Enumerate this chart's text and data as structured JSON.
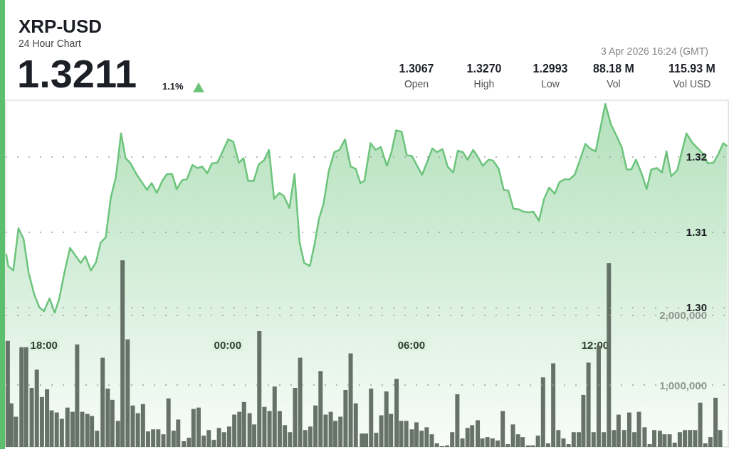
{
  "chart_data": {
    "type": "area",
    "title": "XRP-USD",
    "subtitle": "24 Hour Chart",
    "annotations": [
      "1.3211",
      "1.1%",
      "1.3067",
      "Open",
      "1.3270",
      "High",
      "1.2993",
      "Low",
      "88.18 M",
      "Vol",
      "115.93 M",
      "Vol USD",
      "3 Apr 2026 16:24 (GMT)"
    ],
    "xlim": [
      "2026-04-02T16:45",
      "2026-04-03T16:21"
    ],
    "xticks": [
      {
        "value": "2026-04-02T18:00",
        "label": "18:00"
      },
      {
        "value": "2026-04-03T00:00",
        "label": "00:00"
      },
      {
        "value": "2026-04-03T06:00",
        "label": "06:00"
      },
      {
        "value": "2026-04-03T12:00",
        "label": "12:00"
      }
    ],
    "ylim": [
      1.2815,
      1.3275
    ],
    "yticks": [
      {
        "value": 1.3,
        "label": "1.30"
      },
      {
        "value": 1.31,
        "label": "1.31"
      },
      {
        "value": 1.32,
        "label": "1.32"
      }
    ],
    "y2lim": [
      120000,
      5060000
    ],
    "y2ticks": [
      {
        "value": 1000000,
        "label": "1,000,000"
      },
      {
        "value": 2000000,
        "label": "2,000,000"
      }
    ],
    "grid": "y",
    "series": [
      {
        "color": "#6cc47c",
        "x": [
          "2026-04-02T16:46",
          "2026-04-02T16:50",
          "2026-04-02T17:00",
          "2026-04-02T17:10",
          "2026-04-02T17:20",
          "2026-04-02T17:30",
          "2026-04-02T17:41",
          "2026-04-02T17:51",
          "2026-04-02T18:00",
          "2026-04-02T18:11",
          "2026-04-02T18:21",
          "2026-04-02T18:30",
          "2026-04-02T18:40",
          "2026-04-02T18:51",
          "2026-04-02T19:12",
          "2026-04-02T19:21",
          "2026-04-02T19:32",
          "2026-04-02T19:42",
          "2026-04-02T19:51",
          "2026-04-02T20:01",
          "2026-04-02T20:11",
          "2026-04-02T20:21",
          "2026-04-02T20:31",
          "2026-04-02T20:40",
          "2026-04-02T20:49",
          "2026-04-02T21:01",
          "2026-04-02T21:12",
          "2026-04-02T21:22",
          "2026-04-02T21:31",
          "2026-04-02T21:41",
          "2026-04-02T21:52",
          "2026-04-02T22:01",
          "2026-04-02T22:11",
          "2026-04-02T22:20",
          "2026-04-02T22:31",
          "2026-04-02T22:40",
          "2026-04-02T22:51",
          "2026-04-02T23:01",
          "2026-04-02T23:10",
          "2026-04-02T23:20",
          "2026-04-02T23:29",
          "2026-04-02T23:40",
          "2026-04-02T23:50",
          "2026-04-03T00:01",
          "2026-04-03T00:11",
          "2026-04-03T00:22",
          "2026-04-03T00:31",
          "2026-04-03T00:40",
          "2026-04-03T00:51",
          "2026-04-03T01:01",
          "2026-04-03T01:11",
          "2026-04-03T01:21",
          "2026-04-03T01:31",
          "2026-04-03T01:41",
          "2026-04-03T01:50",
          "2026-04-03T02:01",
          "2026-04-03T02:11",
          "2026-04-03T02:21",
          "2026-04-03T02:30",
          "2026-04-03T02:41",
          "2026-04-03T02:50",
          "2026-04-03T02:59",
          "2026-04-03T03:08",
          "2026-04-03T03:18",
          "2026-04-03T03:29",
          "2026-04-03T03:39",
          "2026-04-03T03:50",
          "2026-04-03T04:01",
          "2026-04-03T04:11",
          "2026-04-03T04:20",
          "2026-04-03T04:28",
          "2026-04-03T04:40",
          "2026-04-03T04:50",
          "2026-04-03T05:00",
          "2026-04-03T05:12",
          "2026-04-03T05:21",
          "2026-04-03T05:30",
          "2026-04-03T05:41",
          "2026-04-03T05:51",
          "2026-04-03T06:01",
          "2026-04-03T06:12",
          "2026-04-03T06:21",
          "2026-04-03T06:31",
          "2026-04-03T06:41",
          "2026-04-03T06:50",
          "2026-04-03T07:01",
          "2026-04-03T07:11",
          "2026-04-03T07:22",
          "2026-04-03T07:31",
          "2026-04-03T07:41",
          "2026-04-03T07:50",
          "2026-04-03T08:01",
          "2026-04-03T08:10",
          "2026-04-03T08:20",
          "2026-04-03T08:31",
          "2026-04-03T08:40",
          "2026-04-03T08:51",
          "2026-04-03T09:01",
          "2026-04-03T09:10",
          "2026-04-03T09:20",
          "2026-04-03T09:31",
          "2026-04-03T09:40",
          "2026-04-03T09:50",
          "2026-04-03T09:59",
          "2026-04-03T10:10",
          "2026-04-03T10:20",
          "2026-04-03T10:30",
          "2026-04-03T10:41",
          "2026-04-03T10:50",
          "2026-04-03T11:00",
          "2026-04-03T11:10",
          "2026-04-03T11:20",
          "2026-04-03T11:30",
          "2026-04-03T11:41",
          "2026-04-03T11:50",
          "2026-04-03T12:01",
          "2026-04-03T12:11",
          "2026-04-03T12:20",
          "2026-04-03T12:31",
          "2026-04-03T12:41",
          "2026-04-03T12:52",
          "2026-04-03T13:02",
          "2026-04-03T13:11",
          "2026-04-03T13:20",
          "2026-04-03T13:31",
          "2026-04-03T13:41",
          "2026-04-03T13:50",
          "2026-04-03T14:01",
          "2026-04-03T14:11",
          "2026-04-03T14:20",
          "2026-04-03T14:29",
          "2026-04-03T14:41",
          "2026-04-03T14:59",
          "2026-04-03T15:11",
          "2026-04-03T15:20",
          "2026-04-03T15:31",
          "2026-04-03T15:41",
          "2026-04-03T15:52",
          "2026-04-03T16:02",
          "2026-04-03T16:11",
          "2026-04-03T16:19"
        ],
        "values": [
          1.3071,
          1.3055,
          1.3049,
          1.3105,
          1.3091,
          1.3046,
          1.3017,
          1.3,
          1.2995,
          1.3012,
          1.2993,
          1.3012,
          1.3046,
          1.3079,
          1.3059,
          1.3068,
          1.3049,
          1.306,
          1.3086,
          1.3093,
          1.3146,
          1.3173,
          1.3231,
          1.3198,
          1.3192,
          1.3177,
          1.3166,
          1.3156,
          1.3165,
          1.3152,
          1.3168,
          1.3177,
          1.3177,
          1.3157,
          1.3169,
          1.317,
          1.3189,
          1.3185,
          1.3187,
          1.3178,
          1.3191,
          1.3192,
          1.3207,
          1.3223,
          1.322,
          1.3192,
          1.3198,
          1.3168,
          1.3168,
          1.319,
          1.3195,
          1.3209,
          1.3144,
          1.3152,
          1.3148,
          1.3132,
          1.3177,
          1.3086,
          1.3059,
          1.3055,
          1.3083,
          1.3118,
          1.3138,
          1.3181,
          1.3206,
          1.3209,
          1.3223,
          1.3187,
          1.3184,
          1.3165,
          1.3168,
          1.3218,
          1.3209,
          1.3213,
          1.3188,
          1.3206,
          1.3235,
          1.3233,
          1.3202,
          1.3201,
          1.3187,
          1.3176,
          1.3193,
          1.3211,
          1.3206,
          1.321,
          1.3187,
          1.3179,
          1.3208,
          1.3206,
          1.3196,
          1.3209,
          1.32,
          1.3188,
          1.3196,
          1.3195,
          1.3184,
          1.3156,
          1.3155,
          1.3131,
          1.313,
          1.3127,
          1.3126,
          1.3127,
          1.3115,
          1.3144,
          1.3159,
          1.3151,
          1.3166,
          1.317,
          1.317,
          1.3176,
          1.3195,
          1.3217,
          1.3211,
          1.3207,
          1.324,
          1.327,
          1.3243,
          1.3229,
          1.3213,
          1.3183,
          1.3183,
          1.3196,
          1.3178,
          1.3157,
          1.3183,
          1.3185,
          1.3179,
          1.3207,
          1.3174,
          1.3182,
          1.3231,
          1.3218,
          1.3212,
          1.3204,
          1.3191,
          1.3192,
          1.3204,
          1.3218,
          1.3214
        ]
      },
      {
        "type": "bar",
        "axis": "y2",
        "color": "#5f6a60",
        "x": [
          "2026-04-02T16:49",
          "2026-04-02T16:56",
          "2026-04-02T17:05",
          "2026-04-02T17:16",
          "2026-04-02T17:25",
          "2026-04-02T17:36",
          "2026-04-02T17:46",
          "2026-04-02T17:56",
          "2026-04-02T18:06",
          "2026-04-02T18:15",
          "2026-04-02T18:25",
          "2026-04-02T18:35",
          "2026-04-02T18:46",
          "2026-04-02T18:56",
          "2026-04-02T19:05",
          "2026-04-02T19:15",
          "2026-04-02T19:25",
          "2026-04-02T19:34",
          "2026-04-02T19:44",
          "2026-04-02T19:55",
          "2026-04-02T20:05",
          "2026-04-02T20:14",
          "2026-04-02T20:25",
          "2026-04-02T20:34",
          "2026-04-02T20:44",
          "2026-04-02T20:54",
          "2026-04-02T21:04",
          "2026-04-02T21:14",
          "2026-04-02T21:24",
          "2026-04-02T21:34",
          "2026-04-02T21:44",
          "2026-04-02T21:54",
          "2026-04-02T22:04",
          "2026-04-02T22:14",
          "2026-04-02T22:23",
          "2026-04-02T22:34",
          "2026-04-02T22:44",
          "2026-04-02T22:53",
          "2026-04-02T23:03",
          "2026-04-02T23:13",
          "2026-04-02T23:23",
          "2026-04-02T23:33",
          "2026-04-02T23:43",
          "2026-04-02T23:53",
          "2026-04-03T00:03",
          "2026-04-03T00:13",
          "2026-04-03T00:23",
          "2026-04-03T00:32",
          "2026-04-03T00:43",
          "2026-04-03T00:52",
          "2026-04-03T01:02",
          "2026-04-03T01:12",
          "2026-04-03T01:22",
          "2026-04-03T01:32",
          "2026-04-03T01:42",
          "2026-04-03T01:52",
          "2026-04-03T02:02",
          "2026-04-03T02:12",
          "2026-04-03T02:22",
          "2026-04-03T02:32",
          "2026-04-03T02:42",
          "2026-04-03T02:52",
          "2026-04-03T03:02",
          "2026-04-03T03:12",
          "2026-04-03T03:22",
          "2026-04-03T03:31",
          "2026-04-03T03:41",
          "2026-04-03T03:51",
          "2026-04-03T04:01",
          "2026-04-03T04:11",
          "2026-04-03T04:23",
          "2026-04-03T04:31",
          "2026-04-03T04:41",
          "2026-04-03T04:51",
          "2026-04-03T05:01",
          "2026-04-03T05:11",
          "2026-04-03T05:20",
          "2026-04-03T05:31",
          "2026-04-03T05:40",
          "2026-04-03T05:50",
          "2026-04-03T06:01",
          "2026-04-03T06:10",
          "2026-04-03T06:20",
          "2026-04-03T06:30",
          "2026-04-03T06:40",
          "2026-04-03T06:50",
          "2026-04-03T07:00",
          "2026-04-03T07:10",
          "2026-04-03T07:20",
          "2026-04-03T07:30",
          "2026-04-03T07:40",
          "2026-04-03T07:50",
          "2026-04-03T07:59",
          "2026-04-03T08:10",
          "2026-04-03T08:19",
          "2026-04-03T08:29",
          "2026-04-03T08:39",
          "2026-04-03T08:49",
          "2026-04-03T08:59",
          "2026-04-03T09:09",
          "2026-04-03T09:19",
          "2026-04-03T09:29",
          "2026-04-03T09:38",
          "2026-04-03T09:49",
          "2026-04-03T09:58",
          "2026-04-03T10:08",
          "2026-04-03T10:18",
          "2026-04-03T10:28",
          "2026-04-03T10:38",
          "2026-04-03T10:48",
          "2026-04-03T10:58",
          "2026-04-03T11:08",
          "2026-04-03T11:18",
          "2026-04-03T11:28",
          "2026-04-03T11:37",
          "2026-04-03T11:47",
          "2026-04-03T11:57",
          "2026-04-03T12:07",
          "2026-04-03T12:17",
          "2026-04-03T12:27",
          "2026-04-03T12:37",
          "2026-04-03T12:46",
          "2026-04-03T12:57",
          "2026-04-03T13:07",
          "2026-04-03T13:17",
          "2026-04-03T13:26",
          "2026-04-03T13:37",
          "2026-04-03T13:47",
          "2026-04-03T13:56",
          "2026-04-03T14:07",
          "2026-04-03T14:16",
          "2026-04-03T14:26",
          "2026-04-03T14:36",
          "2026-04-03T14:46",
          "2026-04-03T14:56",
          "2026-04-03T15:06",
          "2026-04-03T15:16",
          "2026-04-03T15:26",
          "2026-04-03T15:36",
          "2026-04-03T15:46",
          "2026-04-03T15:56",
          "2026-04-03T16:05"
        ],
        "values": [
          1630000,
          740000,
          550000,
          1540000,
          1540000,
          960000,
          1220000,
          830000,
          940000,
          640000,
          610000,
          520000,
          680000,
          620000,
          1580000,
          620000,
          590000,
          560000,
          350000,
          1390000,
          950000,
          790000,
          490000,
          2780000,
          1650000,
          710000,
          600000,
          730000,
          340000,
          370000,
          370000,
          300000,
          810000,
          350000,
          510000,
          200000,
          250000,
          660000,
          680000,
          280000,
          360000,
          220000,
          390000,
          330000,
          410000,
          580000,
          620000,
          760000,
          600000,
          440000,
          1770000,
          690000,
          630000,
          980000,
          630000,
          430000,
          330000,
          960000,
          1390000,
          360000,
          410000,
          710000,
          1200000,
          580000,
          620000,
          490000,
          550000,
          930000,
          1450000,
          740000,
          310000,
          310000,
          950000,
          320000,
          570000,
          910000,
          590000,
          1090000,
          490000,
          490000,
          370000,
          470000,
          350000,
          400000,
          300000,
          170000,
          130000,
          140000,
          330000,
          870000,
          240000,
          390000,
          430000,
          500000,
          240000,
          260000,
          240000,
          210000,
          630000,
          160000,
          440000,
          300000,
          260000,
          140000,
          140000,
          280000,
          1110000,
          170000,
          1310000,
          360000,
          240000,
          160000,
          330000,
          330000,
          860000,
          1320000,
          330000,
          1560000,
          330000,
          2740000,
          360000,
          580000,
          360000,
          610000,
          330000,
          620000,
          400000,
          160000,
          360000,
          350000,
          300000,
          300000,
          180000,
          330000,
          360000,
          360000,
          360000,
          750000,
          170000,
          260000,
          820000,
          360000
        ]
      }
    ]
  }
}
